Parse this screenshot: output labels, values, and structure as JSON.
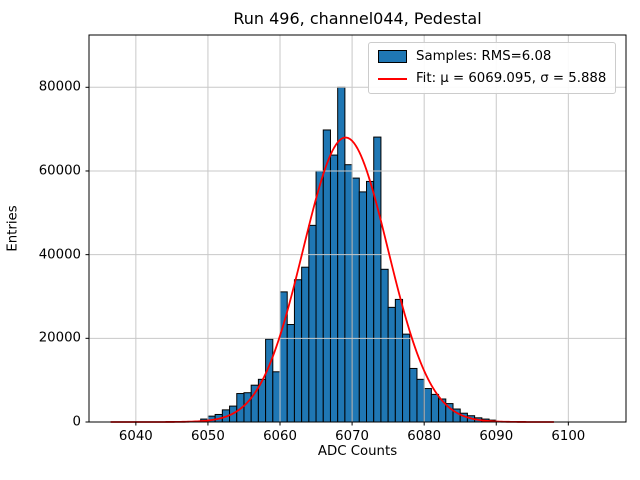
{
  "title": "Run 496, channel044, Pedestal",
  "axes": {
    "xlabel": "ADC Counts",
    "ylabel": "Entries"
  },
  "legend": {
    "position": "upper right",
    "entries": [
      {
        "swatch": "patch",
        "color": "#1f77b4",
        "edge_color": "#000000",
        "label": "Samples: RMS=6.08"
      },
      {
        "swatch": "line",
        "color": "#ff0000",
        "label": "Fit: μ = 6069.095, σ = 5.888"
      }
    ]
  },
  "chart_data": {
    "type": "bar",
    "subtype": "histogram",
    "title": "Run 496, channel044, Pedestal",
    "xlabel": "ADC Counts",
    "ylabel": "Entries",
    "bin_width": 1,
    "bin_left_edges": [
      6049,
      6050,
      6051,
      6052,
      6053,
      6054,
      6055,
      6056,
      6057,
      6058,
      6059,
      6060,
      6061,
      6062,
      6063,
      6064,
      6065,
      6066,
      6067,
      6068,
      6069,
      6070,
      6071,
      6072,
      6073,
      6074,
      6075,
      6076,
      6077,
      6078,
      6079,
      6080,
      6081,
      6082,
      6083,
      6084,
      6085,
      6086,
      6087,
      6088,
      6089
    ],
    "values": [
      700,
      1400,
      1800,
      2900,
      3800,
      6800,
      7000,
      8800,
      10200,
      19800,
      12000,
      31100,
      23300,
      34000,
      37000,
      47000,
      60000,
      69800,
      63800,
      80000,
      61500,
      58300,
      55000,
      57500,
      68100,
      36500,
      27400,
      29300,
      21000,
      12800,
      10200,
      8000,
      6600,
      5500,
      4400,
      3100,
      2100,
      1500,
      1000,
      700,
      450
    ],
    "bar_color": "#1f77b4",
    "bar_edge_color": "#000000",
    "fit": {
      "type": "gaussian",
      "mu": 6069.095,
      "sigma": 5.888,
      "amplitude": 68000,
      "x_range": [
        6036.5,
        6098
      ],
      "color": "#ff0000",
      "rms_label_value": "6.08"
    },
    "xlim": [
      6033.5,
      6108
    ],
    "ylim": [
      0,
      92500
    ],
    "xticks": [
      6040,
      6050,
      6060,
      6070,
      6080,
      6090,
      6100
    ],
    "yticks": [
      0,
      20000,
      40000,
      60000,
      80000
    ],
    "grid": true,
    "grid_color": "#c8c8c8",
    "frame_color": "#000000"
  }
}
